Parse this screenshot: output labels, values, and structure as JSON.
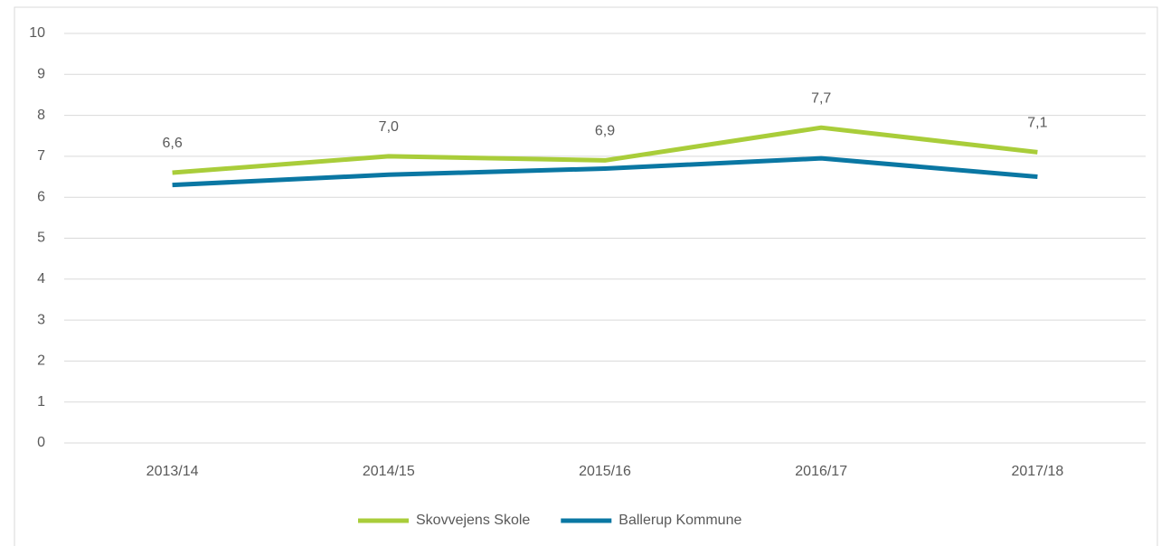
{
  "chart_data": {
    "type": "line",
    "categories": [
      "2013/14",
      "2014/15",
      "2015/16",
      "2016/17",
      "2017/18"
    ],
    "series": [
      {
        "name": "Skovvejens Skole",
        "color": "#a9cd3a",
        "values": [
          6.6,
          7.0,
          6.9,
          7.7,
          7.1
        ],
        "value_labels": [
          "6,6",
          "7,0",
          "6,9",
          "7,7",
          "7,1"
        ]
      },
      {
        "name": "Ballerup Kommune",
        "color": "#0a77a3",
        "values": [
          6.3,
          6.55,
          6.7,
          6.95,
          6.5
        ]
      }
    ],
    "ylim": [
      0,
      10
    ],
    "yticks": [
      0,
      1,
      2,
      3,
      4,
      5,
      6,
      7,
      8,
      9,
      10
    ],
    "grid": true,
    "legend": "bottom"
  }
}
